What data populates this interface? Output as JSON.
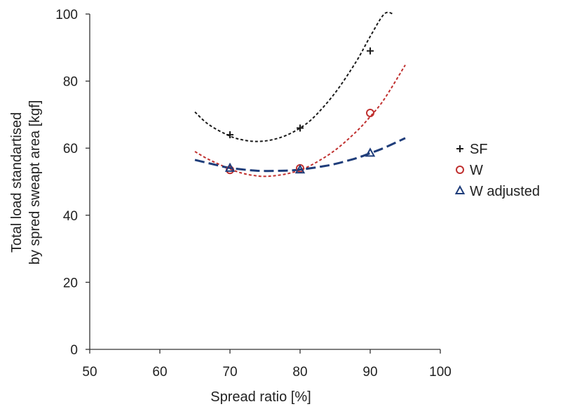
{
  "chart_data": {
    "type": "scatter",
    "title": "",
    "xlabel": "Spread ratio [%]",
    "ylabel_lines": [
      "Total load standartised",
      "by spred sweapt area [kgf]"
    ],
    "xlim": [
      50,
      100
    ],
    "ylim": [
      0,
      100
    ],
    "x_ticks": [
      "50",
      "60",
      "70",
      "80",
      "90",
      "100"
    ],
    "y_ticks": [
      "0",
      "20",
      "40",
      "60",
      "80",
      "100"
    ],
    "grid": false,
    "legend_position": "right",
    "series": [
      {
        "name": "SF",
        "marker": "plus",
        "color": "#1a1a1a",
        "x": [
          70,
          80,
          90
        ],
        "y": [
          64,
          66,
          89
        ],
        "trend": {
          "style": "dotted",
          "x": [
            65,
            67,
            70,
            72,
            74,
            76,
            78,
            80,
            82,
            85,
            88,
            90,
            92,
            93.3
          ],
          "y": [
            70.8,
            67,
            63.6,
            62.4,
            62,
            62.5,
            63.8,
            66,
            69.3,
            76.5,
            85.8,
            93.3,
            100,
            100
          ]
        }
      },
      {
        "name": "W",
        "marker": "circle",
        "color": "#c0302f",
        "x": [
          70,
          80,
          90
        ],
        "y": [
          53.5,
          54,
          70.5
        ],
        "trend": {
          "style": "dotted",
          "x": [
            65,
            67,
            70,
            72,
            74,
            75,
            76,
            78,
            80,
            82,
            85,
            88,
            90,
            92,
            95
          ],
          "y": [
            59,
            56.6,
            53.8,
            52.4,
            51.7,
            51.6,
            51.7,
            52.3,
            53.5,
            55.4,
            59.4,
            64.9,
            69.4,
            74.6,
            84.8
          ]
        }
      },
      {
        "name": "W adjusted",
        "marker": "triangle",
        "color": "#1f3d7a",
        "x": [
          70,
          80,
          90
        ],
        "y": [
          54,
          53.5,
          58.5
        ],
        "trend": {
          "style": "dashed",
          "x": [
            65,
            68,
            70,
            73,
            75,
            78,
            80,
            83,
            85,
            88,
            90,
            92,
            95
          ],
          "y": [
            56.5,
            55,
            54.1,
            53.4,
            53.2,
            53.3,
            53.6,
            54.5,
            55.3,
            57,
            58.5,
            60.1,
            63
          ]
        }
      }
    ]
  }
}
